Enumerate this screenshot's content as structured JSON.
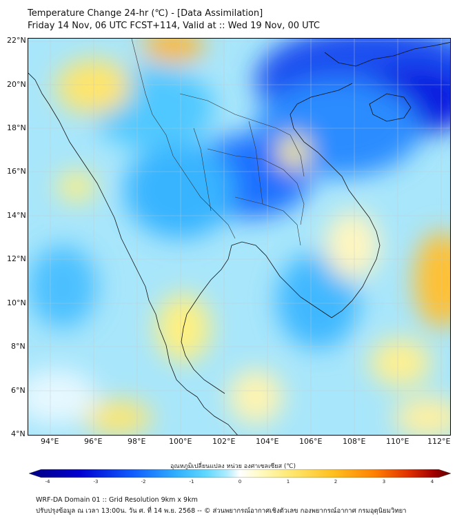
{
  "header": {
    "title_line1": "Temperature Change 24-hr (℃) - [Data Assimilation]",
    "title_line2": "Friday 14 Nov, 06 UTC FCST+114, Valid at :: Wed 19 Nov, 00 UTC"
  },
  "map": {
    "lat_labels": [
      "22°N",
      "20°N",
      "18°N",
      "16°N",
      "14°N",
      "12°N",
      "10°N",
      "8°N",
      "6°N",
      "4°N"
    ],
    "lon_labels": [
      "94°E",
      "96°E",
      "98°E",
      "100°E",
      "102°E",
      "104°E",
      "106°E",
      "108°E",
      "110°E",
      "112°E"
    ],
    "lat_range": [
      4,
      22.2
    ],
    "lon_range": [
      93,
      112.4
    ]
  },
  "colorbar": {
    "title": "อุณหภูมิเปลี่ยนแปลง หน่วย องศาเซลเซียส (℃)",
    "ticks": [
      "-4",
      "-3",
      "-2",
      "-1",
      "0",
      "1",
      "2",
      "3",
      "4"
    ],
    "range": [
      -4,
      4
    ],
    "colors": [
      "#000080",
      "#0000d0",
      "#1060ff",
      "#30b0ff",
      "#60d8ff",
      "#b0ecff",
      "#ffffff",
      "#fffac0",
      "#ffe870",
      "#ffc020",
      "#ff8000",
      "#e03000",
      "#a00000",
      "#600000"
    ]
  },
  "footer": {
    "line1": "WRF-DA Domain 01 :: Grid Resolution 9km x 9km",
    "line2": "ปรับปรุงข้อมูล ณ เวลา 13:00น. วัน ศ. ที่ 14 พ.ย. 2568 -- © ส่วนพยากรณ์อากาศเชิงตัวเลข กองพยากรณ์อากาศ กรมอุตุนิยมวิทยา"
  }
}
